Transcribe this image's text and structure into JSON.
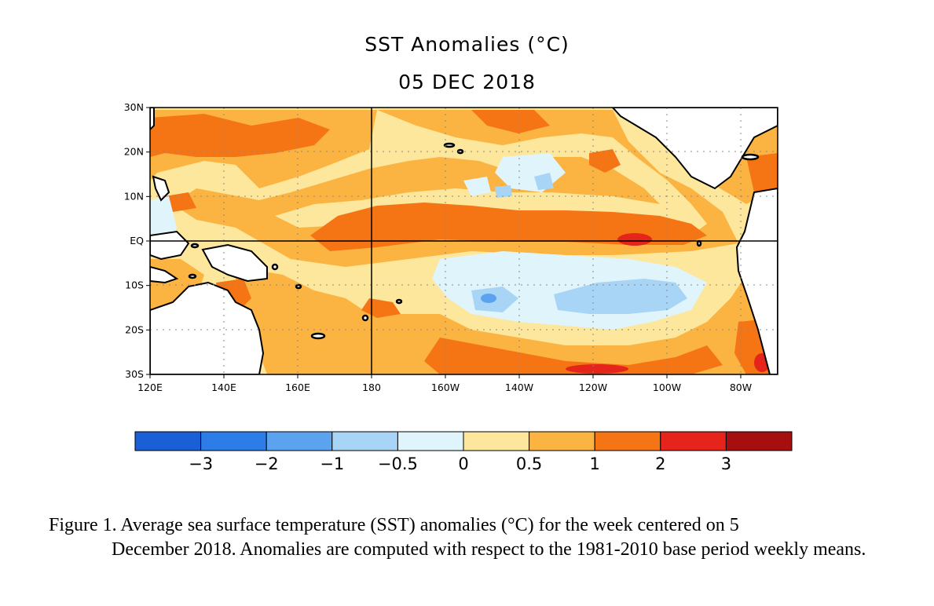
{
  "title": "SST Anomalies (°C)",
  "date": "05 DEC 2018",
  "map": {
    "lat_labels": [
      "30N",
      "20N",
      "10N",
      "EQ",
      "10S",
      "20S",
      "30S"
    ],
    "lon_labels": [
      "120E",
      "140E",
      "160E",
      "180",
      "160W",
      "140W",
      "120W",
      "100W",
      "80W"
    ],
    "lat_range": [
      -30,
      30
    ],
    "lon_range": [
      120,
      290
    ],
    "grid": "dotted",
    "colors": {
      "land": "#ffffff",
      "ocean_default": "#fde79c",
      "coast": "#000000"
    }
  },
  "colorbar": {
    "colors": [
      "#1a5fd6",
      "#2d7de8",
      "#5ba3ef",
      "#a8d4f6",
      "#e0f4fb",
      "#fde79c",
      "#fbb341",
      "#f57515",
      "#e5241b",
      "#a50f0f"
    ],
    "labels": [
      "−3",
      "−2",
      "−1",
      "−0.5",
      "0",
      "0.5",
      "1",
      "2",
      "3"
    ]
  },
  "caption": {
    "first_line": "Figure 1. Average sea surface temperature (SST) anomalies (°C) for the week centered on 5",
    "rest": "December 2018.  Anomalies are computed with respect to the 1981-2010 base period weekly means."
  }
}
